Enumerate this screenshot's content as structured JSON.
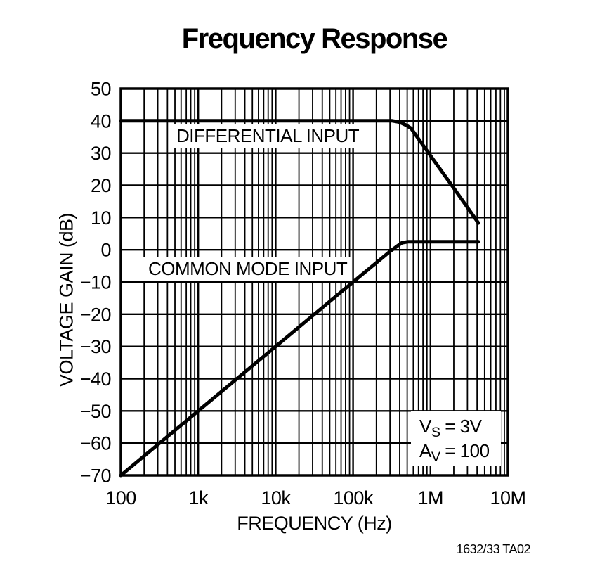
{
  "colors": {
    "ink": "#000000",
    "background": "#ffffff"
  },
  "chart_data": {
    "type": "line",
    "title": "Frequency Response",
    "xlabel": "FREQUENCY (Hz)",
    "ylabel": "VOLTAGE GAIN (dB)",
    "x_scale": "log",
    "x_range": [
      100,
      10000000
    ],
    "y_range": [
      -70,
      50
    ],
    "grid": "full log minor vertical grid; horizontal gridlines every 10 dB",
    "legend_position": "labels inline on plot",
    "x_ticks": [
      {
        "value": 100,
        "label": "100"
      },
      {
        "value": 1000,
        "label": "1k"
      },
      {
        "value": 10000,
        "label": "10k"
      },
      {
        "value": 100000,
        "label": "100k"
      },
      {
        "value": 1000000,
        "label": "1M"
      },
      {
        "value": 10000000,
        "label": "10M"
      }
    ],
    "y_ticks": [
      {
        "value": 50,
        "label": "50"
      },
      {
        "value": 40,
        "label": "40"
      },
      {
        "value": 30,
        "label": "30"
      },
      {
        "value": 20,
        "label": "20"
      },
      {
        "value": 10,
        "label": "10"
      },
      {
        "value": 0,
        "label": "0"
      },
      {
        "value": -10,
        "label": "−10"
      },
      {
        "value": -20,
        "label": "−20"
      },
      {
        "value": -30,
        "label": "−30"
      },
      {
        "value": -40,
        "label": "−40"
      },
      {
        "value": -50,
        "label": "−50"
      },
      {
        "value": -60,
        "label": "−60"
      },
      {
        "value": -70,
        "label": "−70"
      }
    ],
    "series": [
      {
        "name": "differential-input",
        "label": "DIFFERENTIAL INPUT",
        "points_hz_db": [
          [
            100,
            40
          ],
          [
            320000,
            40
          ],
          [
            400000,
            39.6
          ],
          [
            480000,
            38.7
          ],
          [
            560000,
            37.7
          ],
          [
            1000000,
            29.2
          ],
          [
            2000000,
            19.1
          ],
          [
            4160000,
            8.3
          ]
        ]
      },
      {
        "name": "common-mode-input",
        "label": "COMMON MODE INPUT",
        "points_hz_db": [
          [
            100,
            -70
          ],
          [
            1000,
            -50
          ],
          [
            10000,
            -30
          ],
          [
            100000,
            -10
          ],
          [
            300000,
            -0.5
          ],
          [
            380000,
            1.3
          ],
          [
            430000,
            2.2
          ],
          [
            520000,
            2.5
          ],
          [
            4160000,
            2.5
          ]
        ]
      }
    ],
    "annotation_lines": [
      {
        "base": "V",
        "sub": "S",
        "rest": " = 3V"
      },
      {
        "base": "A",
        "sub": "V",
        "rest": " = 100"
      }
    ]
  },
  "footer": {
    "figure_code": "1632/33 TA02"
  }
}
